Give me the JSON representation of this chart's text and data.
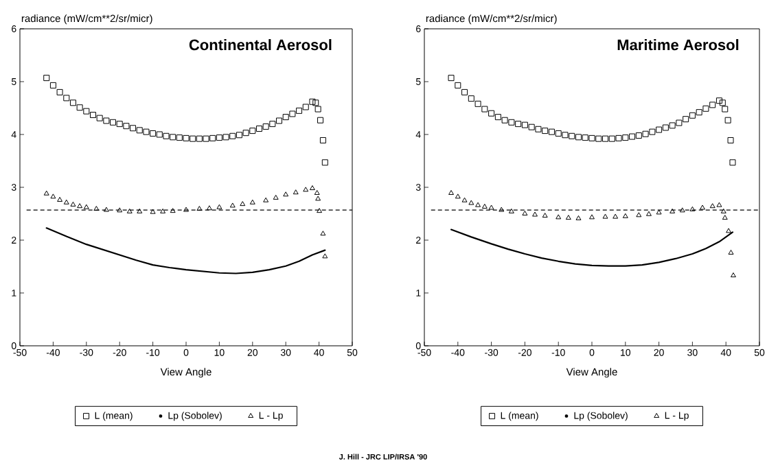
{
  "chart_data": [
    {
      "type": "scatter",
      "title": "Continental Aerosol",
      "xlabel": "View Angle",
      "ylabel": "radiance (mW/cm**2/sr/micr)",
      "xlim": [
        -50,
        50
      ],
      "ylim": [
        0,
        6
      ],
      "xticks": [
        -50,
        -40,
        -30,
        -20,
        -10,
        0,
        10,
        20,
        30,
        40,
        50
      ],
      "yticks": [
        0,
        1,
        2,
        3,
        4,
        5,
        6
      ],
      "grid": false,
      "legend": "bottom",
      "ref_lines": [
        {
          "axis": "y",
          "value": 2.57,
          "line_style": "dashed"
        }
      ],
      "series": [
        {
          "name": "L (mean)",
          "marker": "square",
          "color": "#000000",
          "x": [
            -42,
            -40,
            -38,
            -36,
            -34,
            -32,
            -30,
            -28,
            -26,
            -24,
            -22,
            -20,
            -18,
            -16,
            -14,
            -12,
            -10,
            -8,
            -6,
            -4,
            -2,
            0,
            2,
            4,
            6,
            8,
            10,
            12,
            14,
            16,
            18,
            20,
            22,
            24,
            26,
            28,
            30,
            32,
            34,
            36,
            38,
            39,
            39.7,
            40.4,
            41.2,
            41.8
          ],
          "values": [
            5.07,
            4.93,
            4.8,
            4.69,
            4.6,
            4.51,
            4.44,
            4.37,
            4.31,
            4.26,
            4.23,
            4.2,
            4.16,
            4.12,
            4.08,
            4.05,
            4.02,
            4.0,
            3.97,
            3.95,
            3.94,
            3.93,
            3.92,
            3.92,
            3.92,
            3.93,
            3.94,
            3.95,
            3.97,
            3.99,
            4.03,
            4.07,
            4.11,
            4.15,
            4.2,
            4.26,
            4.33,
            4.39,
            4.45,
            4.52,
            4.62,
            4.6,
            4.48,
            4.27,
            3.89,
            3.47
          ]
        },
        {
          "name": "Lp (Sobolev)",
          "type": "line",
          "marker": "none",
          "color": "#000000",
          "x": [
            -42,
            -36,
            -30,
            -25,
            -20,
            -15,
            -10,
            -5,
            0,
            5,
            10,
            15,
            20,
            25,
            30,
            34,
            38,
            41.8
          ],
          "values": [
            2.23,
            2.07,
            1.92,
            1.82,
            1.72,
            1.62,
            1.53,
            1.48,
            1.44,
            1.41,
            1.38,
            1.37,
            1.39,
            1.44,
            1.51,
            1.6,
            1.72,
            1.81
          ]
        },
        {
          "name": "L - Lp",
          "marker": "triangle",
          "color": "#000000",
          "x": [
            -42,
            -40,
            -38,
            -36,
            -34,
            -32,
            -30,
            -27,
            -24,
            -20,
            -17,
            -14,
            -10,
            -7,
            -4,
            0,
            4,
            7,
            10,
            14,
            17,
            20,
            24,
            27,
            30,
            33,
            36,
            38,
            39.4,
            39.7,
            40.1,
            41.2,
            41.8
          ],
          "values": [
            2.88,
            2.82,
            2.76,
            2.71,
            2.67,
            2.64,
            2.62,
            2.59,
            2.57,
            2.56,
            2.54,
            2.54,
            2.53,
            2.54,
            2.55,
            2.57,
            2.59,
            2.6,
            2.62,
            2.65,
            2.68,
            2.71,
            2.75,
            2.8,
            2.86,
            2.9,
            2.95,
            2.98,
            2.89,
            2.78,
            2.55,
            2.12,
            1.69
          ]
        }
      ]
    },
    {
      "type": "scatter",
      "title": "Maritime Aerosol",
      "xlabel": "View Angle",
      "ylabel": "radiance (mW/cm**2/sr/micr)",
      "xlim": [
        -50,
        50
      ],
      "ylim": [
        0,
        6
      ],
      "xticks": [
        -50,
        -40,
        -30,
        -20,
        -10,
        0,
        10,
        20,
        30,
        40,
        50
      ],
      "yticks": [
        0,
        1,
        2,
        3,
        4,
        5,
        6
      ],
      "grid": false,
      "legend": "bottom",
      "annotations": [
        "J. Hill - JRC LIP/IRSA '90"
      ],
      "ref_lines": [
        {
          "axis": "y",
          "value": 2.57,
          "line_style": "dashed"
        }
      ],
      "series": [
        {
          "name": "L (mean)",
          "marker": "square",
          "color": "#000000",
          "x": [
            -42,
            -40,
            -38,
            -36,
            -34,
            -32,
            -30,
            -28,
            -26,
            -24,
            -22,
            -20,
            -18,
            -16,
            -14,
            -12,
            -10,
            -8,
            -6,
            -4,
            -2,
            0,
            2,
            4,
            6,
            8,
            10,
            12,
            14,
            16,
            18,
            20,
            22,
            24,
            26,
            28,
            30,
            32,
            34,
            36,
            38,
            39,
            39.7,
            40.6,
            41.4,
            42
          ],
          "values": [
            5.07,
            4.93,
            4.8,
            4.68,
            4.58,
            4.48,
            4.4,
            4.33,
            4.27,
            4.23,
            4.2,
            4.18,
            4.14,
            4.1,
            4.07,
            4.05,
            4.02,
            3.99,
            3.97,
            3.95,
            3.94,
            3.93,
            3.92,
            3.92,
            3.92,
            3.93,
            3.94,
            3.96,
            3.98,
            4.01,
            4.05,
            4.09,
            4.13,
            4.17,
            4.22,
            4.29,
            4.36,
            4.42,
            4.49,
            4.56,
            4.64,
            4.6,
            4.48,
            4.27,
            3.89,
            3.47
          ]
        },
        {
          "name": "Lp (Sobolev)",
          "type": "line",
          "marker": "none",
          "color": "#000000",
          "x": [
            -42,
            -36,
            -30,
            -25,
            -20,
            -15,
            -10,
            -5,
            0,
            5,
            10,
            15,
            20,
            25,
            30,
            34,
            38,
            42
          ],
          "values": [
            2.2,
            2.06,
            1.93,
            1.83,
            1.74,
            1.66,
            1.6,
            1.55,
            1.52,
            1.51,
            1.51,
            1.53,
            1.58,
            1.65,
            1.74,
            1.84,
            1.97,
            2.15
          ]
        },
        {
          "name": "L - Lp",
          "marker": "triangle",
          "color": "#000000",
          "x": [
            -42,
            -40,
            -38,
            -36,
            -34,
            -32,
            -30,
            -27,
            -24,
            -20,
            -17,
            -14,
            -10,
            -7,
            -4,
            0,
            4,
            7,
            10,
            14,
            17,
            20,
            24,
            27,
            30,
            33,
            36,
            38,
            39.3,
            39.7,
            40.8,
            41.5,
            42.2
          ],
          "values": [
            2.89,
            2.82,
            2.75,
            2.7,
            2.66,
            2.63,
            2.61,
            2.57,
            2.54,
            2.5,
            2.48,
            2.46,
            2.43,
            2.42,
            2.41,
            2.43,
            2.44,
            2.44,
            2.45,
            2.47,
            2.49,
            2.52,
            2.54,
            2.56,
            2.58,
            2.61,
            2.64,
            2.66,
            2.54,
            2.42,
            2.17,
            1.76,
            1.33
          ]
        }
      ]
    }
  ]
}
